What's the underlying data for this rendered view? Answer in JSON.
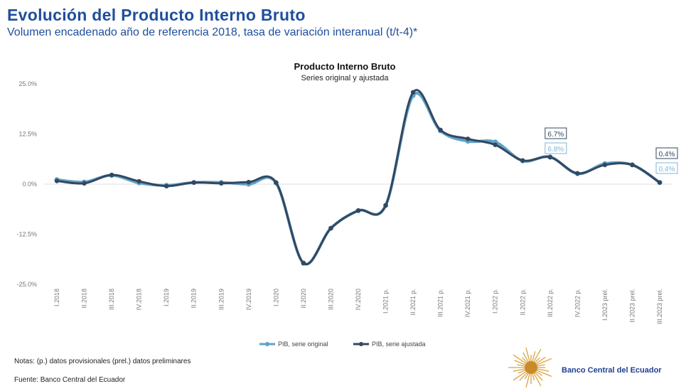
{
  "header": {
    "title": "Evolución del Producto Interno Bruto",
    "subtitle": "Volumen encadenado año de referencia 2018, tasa de variación interanual (t/t-4)*"
  },
  "chart_data": {
    "type": "line",
    "title": "Producto Interno Bruto",
    "subtitle": "Series original y ajustada",
    "ylim": [
      -25,
      25
    ],
    "yticks": [
      25,
      12.5,
      0,
      -12.5,
      -25
    ],
    "ytick_labels": [
      "25.0%",
      "12.5%",
      "0.0%",
      "-12.5%",
      "-25.0%"
    ],
    "categories": [
      "I.2018",
      "II.2018",
      "III.2018",
      "IV.2018",
      "I.2019",
      "II.2019",
      "III.2019",
      "IV.2019",
      "I.2020",
      "II.2020",
      "III.2020",
      "IV.2020",
      "I.2021 p.",
      "II.2021 p.",
      "III.2021 p.",
      "IV.2021 p.",
      "I.2022 p.",
      "II.2022 p.",
      "III.2022 p.",
      "IV.2022 p.",
      "I.2023 prel.",
      "II.2023 prel.",
      "III.2023 prel."
    ],
    "series": [
      {
        "name": "PIB, serie original",
        "color": "#5ea3c9",
        "values": [
          1.1,
          0.5,
          2.2,
          0.3,
          -0.3,
          0.4,
          0.4,
          0.0,
          0.3,
          -19.7,
          -11.0,
          -6.6,
          -5.3,
          22.1,
          13.3,
          10.7,
          10.5,
          5.8,
          6.8,
          2.6,
          5.1,
          4.8,
          0.4
        ]
      },
      {
        "name": "PIB, serie ajustada",
        "color": "#34475f",
        "values": [
          0.8,
          0.2,
          2.3,
          0.7,
          -0.5,
          0.4,
          0.2,
          0.5,
          0.4,
          -19.7,
          -11.0,
          -6.6,
          -5.3,
          22.9,
          13.5,
          11.3,
          9.8,
          5.9,
          6.7,
          2.7,
          4.8,
          4.8,
          0.4
        ]
      }
    ],
    "annotations": [
      {
        "category": "III.2022 p.",
        "adjusted": "6.7%",
        "original": "6.8%"
      },
      {
        "category": "III.2023 prel.",
        "adjusted": "0.4%",
        "original": "0.4%"
      }
    ],
    "legend": "bottom-center"
  },
  "footer": {
    "notes_label": "Notas:",
    "notes": "(p.) datos provisionales (prel.) datos preliminares",
    "source_label": "Fuente:",
    "source": "Banco Central del Ecuador",
    "logo_text": "Banco Central del Ecuador"
  }
}
